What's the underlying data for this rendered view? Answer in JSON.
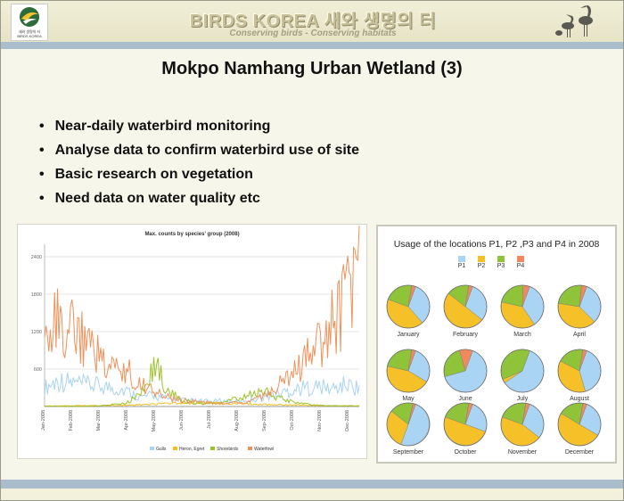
{
  "header": {
    "brand": "BIRDS KOREA   새와 생명의 터",
    "tagline": "Conserving birds - Conserving habitats",
    "logo_text": [
      "새와 생명의 터",
      "BIRDS KOREA"
    ]
  },
  "slide": {
    "title": "Mokpo Namhang Urban Wetland (3)",
    "bullets": [
      "Near-daily waterbird monitoring",
      "Analyse data to confirm waterbird use of site",
      "Basic research on vegetation",
      "Need data on water quality etc"
    ]
  },
  "chart_data": [
    {
      "type": "line",
      "title": "Max. counts by species' group (2008)",
      "x_ticks": [
        "Jan-2008",
        "Feb-2008",
        "Mar-2008",
        "Apr-2008",
        "May-2008",
        "Jun-2008",
        "Jul-2008",
        "Aug-2008",
        "Sep-2008",
        "Oct-2008",
        "Nov-2008",
        "Dec-2008"
      ],
      "y_ticks": [
        600,
        1200,
        1800,
        2400
      ],
      "ylim": [
        0,
        2600
      ],
      "colors": {
        "Gulls": "#a9d4f2",
        "Heron, Egret": "#f5bf22",
        "Shorebirds": "#9cc22a",
        "Waterfowl": "#f0915a"
      },
      "series": [
        {
          "name": "Gulls",
          "values": [
            300,
            420,
            380,
            350,
            330,
            300,
            250,
            150,
            180,
            120,
            100,
            90,
            80,
            90,
            70,
            110,
            150,
            200,
            260,
            300,
            320,
            280,
            350,
            300
          ]
        },
        {
          "name": "Heron, Egret",
          "values": [
            10,
            10,
            12,
            15,
            15,
            18,
            20,
            30,
            40,
            50,
            60,
            60,
            55,
            50,
            45,
            40,
            35,
            30,
            25,
            20,
            15,
            12,
            10,
            10
          ]
        },
        {
          "name": "Shorebirds",
          "values": [
            5,
            5,
            5,
            5,
            10,
            30,
            60,
            200,
            700,
            300,
            100,
            60,
            40,
            60,
            120,
            180,
            240,
            150,
            80,
            40,
            20,
            10,
            10,
            10
          ]
        },
        {
          "name": "Waterfowl",
          "values": [
            1400,
            1350,
            1200,
            1000,
            850,
            700,
            550,
            400,
            220,
            150,
            100,
            80,
            60,
            50,
            60,
            80,
            150,
            300,
            500,
            700,
            1000,
            1300,
            1700,
            2000
          ]
        }
      ]
    },
    {
      "type": "pie",
      "title": "Usage of the locations P1, P2 ,P3 and P4 in 2008",
      "legend": [
        "P1",
        "P2",
        "P3",
        "P4"
      ],
      "colors": [
        "#aad4f4",
        "#f6c028",
        "#8fc33a",
        "#f08a5e"
      ],
      "categories": [
        "January",
        "February",
        "March",
        "April",
        "May",
        "June",
        "July",
        "August",
        "September",
        "October",
        "November",
        "December"
      ],
      "values": [
        [
          33,
          42,
          22,
          3
        ],
        [
          30,
          50,
          17,
          3
        ],
        [
          35,
          38,
          22,
          5
        ],
        [
          32,
          40,
          24,
          4
        ],
        [
          28,
          45,
          24,
          3
        ],
        [
          65,
          0,
          25,
          10
        ],
        [
          60,
          3,
          37,
          0
        ],
        [
          40,
          37,
          20,
          3
        ],
        [
          50,
          30,
          18,
          2
        ],
        [
          25,
          50,
          22,
          3
        ],
        [
          30,
          45,
          22,
          3
        ],
        [
          28,
          50,
          19,
          3
        ]
      ]
    }
  ]
}
